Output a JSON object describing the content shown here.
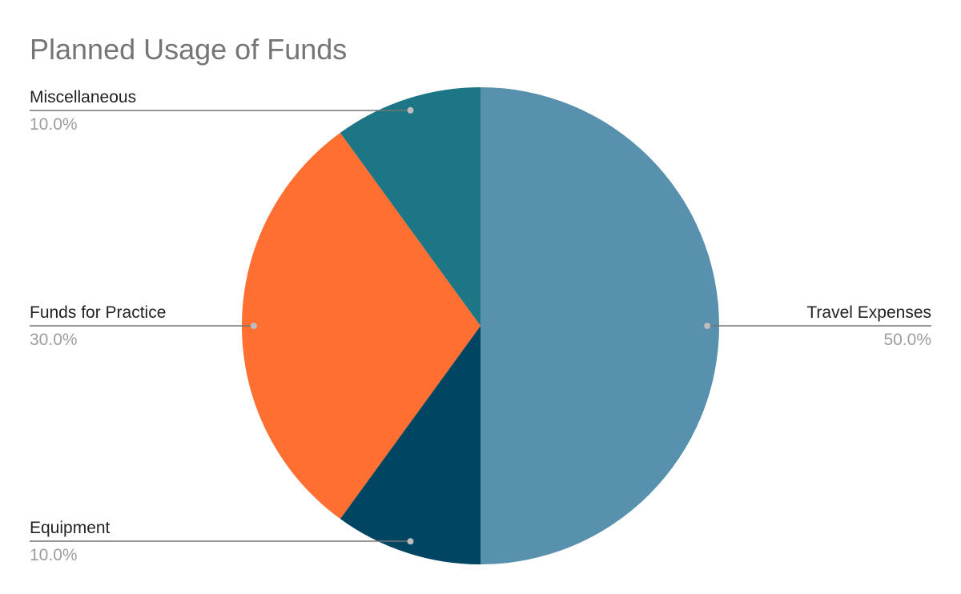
{
  "chart_data": {
    "type": "pie",
    "title": "Planned Usage of Funds",
    "slices": [
      {
        "label": "Travel Expenses",
        "value": 50.0,
        "percent_text": "50.0%",
        "color": "#5891ad"
      },
      {
        "label": "Equipment",
        "value": 10.0,
        "percent_text": "10.0%",
        "color": "#004561"
      },
      {
        "label": "Funds for Practice",
        "value": 30.0,
        "percent_text": "30.0%",
        "color": "#ff6f31"
      },
      {
        "label": "Miscellaneous",
        "value": 10.0,
        "percent_text": "10.0%",
        "color": "#1c7685"
      }
    ],
    "start_angle_deg": 0,
    "direction": "clockwise",
    "leader_line_color": "#757575",
    "legend": "none"
  }
}
